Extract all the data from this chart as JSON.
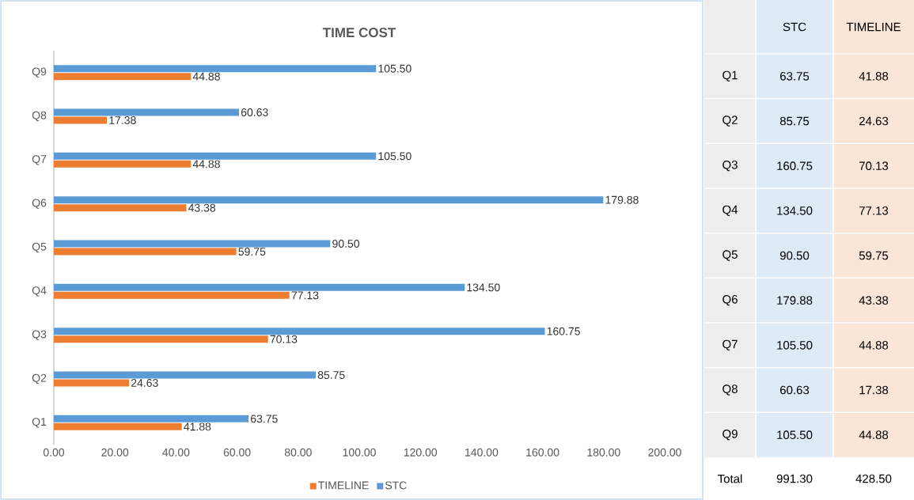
{
  "chart_data": {
    "type": "bar",
    "orientation": "horizontal",
    "title": "TIME COST",
    "categories": [
      "Q9",
      "Q8",
      "Q7",
      "Q6",
      "Q5",
      "Q4",
      "Q3",
      "Q2",
      "Q1"
    ],
    "series": [
      {
        "name": "TIMELINE",
        "color": "#ed7d31",
        "values": [
          44.88,
          17.38,
          44.88,
          43.38,
          59.75,
          77.13,
          70.13,
          24.63,
          41.88
        ],
        "value_labels": [
          "44.88",
          "17.38",
          "44.88",
          "43.38",
          "59.75",
          "77.13",
          "70.13",
          "24.63",
          "41.88"
        ]
      },
      {
        "name": "STC",
        "color": "#5b9bd5",
        "values": [
          105.5,
          60.63,
          105.5,
          179.88,
          90.5,
          134.5,
          160.75,
          85.75,
          63.75
        ],
        "value_labels": [
          "105.50",
          "60.63",
          "105.50",
          "179.88",
          "90.50",
          "134.50",
          "160.75",
          "85.75",
          "63.75"
        ]
      }
    ],
    "xlim": [
      0,
      200
    ],
    "xticks": [
      {
        "value": 0,
        "label": "0.00"
      },
      {
        "value": 20,
        "label": "20.00"
      },
      {
        "value": 40,
        "label": "40.00"
      },
      {
        "value": 60,
        "label": "60.00"
      },
      {
        "value": 80,
        "label": "80.00"
      },
      {
        "value": 100,
        "label": "100.00"
      },
      {
        "value": 120,
        "label": "120.00"
      },
      {
        "value": 140,
        "label": "140.00"
      },
      {
        "value": 160,
        "label": "160.00"
      },
      {
        "value": 180,
        "label": "180.00"
      },
      {
        "value": 200,
        "label": "200.00"
      }
    ],
    "legend": "bottom",
    "annotations": [
      "Total",
      "991.30",
      "428.50"
    ]
  }
}
